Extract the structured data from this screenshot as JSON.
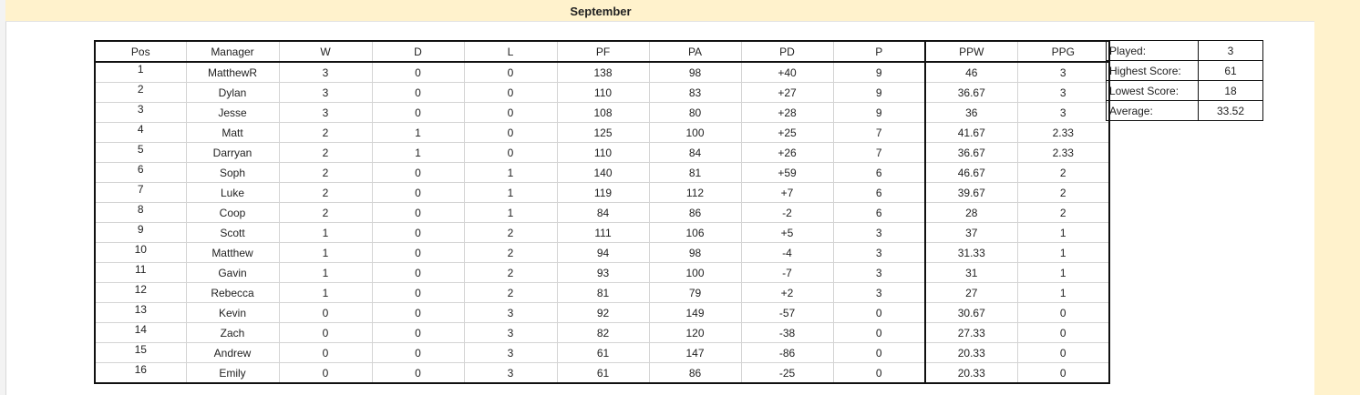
{
  "sheet": {
    "title": "September"
  },
  "league": {
    "columns": [
      "Pos",
      "Manager",
      "W",
      "D",
      "L",
      "PF",
      "PA",
      "PD",
      "P",
      "PPW",
      "PPG"
    ],
    "rows": [
      [
        "1",
        "MatthewR",
        "3",
        "0",
        "0",
        "138",
        "98",
        "+40",
        "9",
        "46",
        "3"
      ],
      [
        "2",
        "Dylan",
        "3",
        "0",
        "0",
        "110",
        "83",
        "+27",
        "9",
        "36.67",
        "3"
      ],
      [
        "3",
        "Jesse",
        "3",
        "0",
        "0",
        "108",
        "80",
        "+28",
        "9",
        "36",
        "3"
      ],
      [
        "4",
        "Matt",
        "2",
        "1",
        "0",
        "125",
        "100",
        "+25",
        "7",
        "41.67",
        "2.33"
      ],
      [
        "5",
        "Darryan",
        "2",
        "1",
        "0",
        "110",
        "84",
        "+26",
        "7",
        "36.67",
        "2.33"
      ],
      [
        "6",
        "Soph",
        "2",
        "0",
        "1",
        "140",
        "81",
        "+59",
        "6",
        "46.67",
        "2"
      ],
      [
        "7",
        "Luke",
        "2",
        "0",
        "1",
        "119",
        "112",
        "+7",
        "6",
        "39.67",
        "2"
      ],
      [
        "8",
        "Coop",
        "2",
        "0",
        "1",
        "84",
        "86",
        "-2",
        "6",
        "28",
        "2"
      ],
      [
        "9",
        "Scott",
        "1",
        "0",
        "2",
        "111",
        "106",
        "+5",
        "3",
        "37",
        "1"
      ],
      [
        "10",
        "Matthew",
        "1",
        "0",
        "2",
        "94",
        "98",
        "-4",
        "3",
        "31.33",
        "1"
      ],
      [
        "11",
        "Gavin",
        "1",
        "0",
        "2",
        "93",
        "100",
        "-7",
        "3",
        "31",
        "1"
      ],
      [
        "12",
        "Rebecca",
        "1",
        "0",
        "2",
        "81",
        "79",
        "+2",
        "3",
        "27",
        "1"
      ],
      [
        "13",
        "Kevin",
        "0",
        "0",
        "3",
        "92",
        "149",
        "-57",
        "0",
        "30.67",
        "0"
      ],
      [
        "14",
        "Zach",
        "0",
        "0",
        "3",
        "82",
        "120",
        "-38",
        "0",
        "27.33",
        "0"
      ],
      [
        "15",
        "Andrew",
        "0",
        "0",
        "3",
        "61",
        "147",
        "-86",
        "0",
        "20.33",
        "0"
      ],
      [
        "16",
        "Emily",
        "0",
        "0",
        "3",
        "61",
        "86",
        "-25",
        "0",
        "20.33",
        "0"
      ]
    ]
  },
  "stats": [
    {
      "label": "Played:",
      "value": "3"
    },
    {
      "label": "Highest Score:",
      "value": "61"
    },
    {
      "label": "Lowest Score:",
      "value": "18"
    },
    {
      "label": "Average:",
      "value": "33.52"
    }
  ],
  "colors": {
    "title_band": "#fff2cc",
    "border_dark": "#111111",
    "grid": "#d4d4d4"
  }
}
